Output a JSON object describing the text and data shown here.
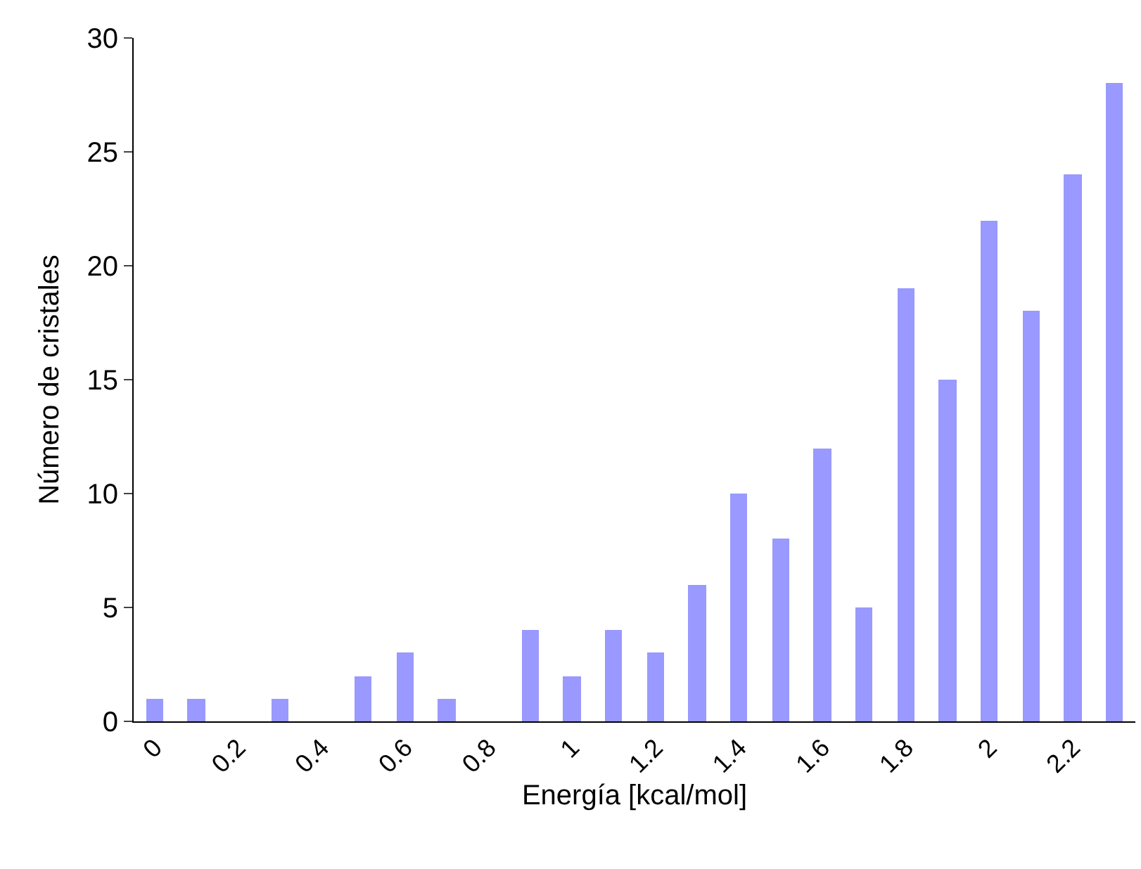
{
  "chart_data": {
    "type": "bar",
    "xlabel": "Energía [kcal/mol]",
    "ylabel": "Número de cristales",
    "categories": [
      "0",
      null,
      "0.2",
      null,
      "0.4",
      null,
      "0.6",
      null,
      "0.8",
      null,
      "1",
      null,
      "1.2",
      null,
      "1.4",
      null,
      "1.6",
      null,
      "1.8",
      null,
      "2",
      null,
      "2.2",
      null
    ],
    "values": [
      1,
      1,
      0,
      1,
      0,
      2,
      3,
      1,
      0,
      4,
      2,
      4,
      3,
      6,
      10,
      8,
      12,
      5,
      19,
      15,
      22,
      18,
      24,
      28
    ],
    "color": "#9999ff",
    "ylim": [
      0,
      30
    ],
    "yticks": [
      0,
      5,
      10,
      15,
      20,
      25,
      30
    ],
    "grid": false
  }
}
